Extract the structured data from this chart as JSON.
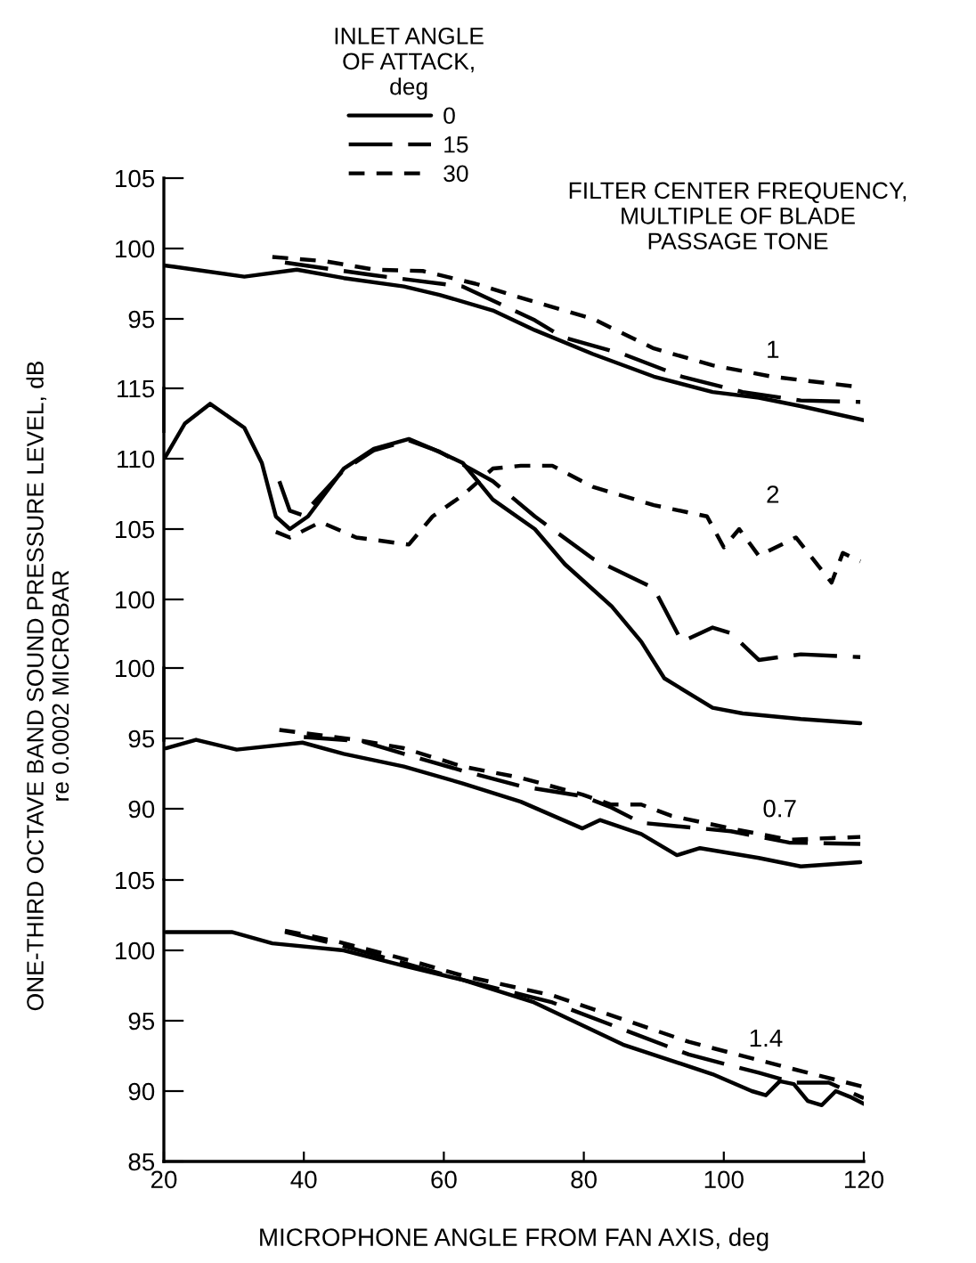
{
  "chart_data": [
    {
      "type": "line",
      "xlim": [
        20,
        120
      ],
      "ylim": [
        87,
        105
      ],
      "yticks": [
        95,
        100,
        105
      ],
      "tick_labels": "y",
      "legend": "top",
      "legend_title": "INLET ANGLE\nOF ATTACK,\ndeg",
      "annotations": [
        "FILTER CENTER FREQUENCY,\nMULTIPLE OF BLADE\nPASSAGE TONE",
        "1"
      ],
      "series": [
        {
          "name": "0",
          "color": "#000000",
          "line_style": "solid",
          "x": [
            20,
            21.5,
            31.5,
            39,
            45.7,
            54.3,
            59.4,
            67,
            73,
            81.3,
            90,
            98.4,
            105,
            111,
            120
          ],
          "values": [
            98.8,
            98.7,
            98.0,
            98.5,
            97.9,
            97.3,
            96.7,
            95.6,
            94.2,
            92.5,
            90.9,
            89.8,
            89.4,
            88.8,
            87.8
          ]
        },
        {
          "name": "15",
          "color": "#000000",
          "line_style": "dashed",
          "x": [
            37.3,
            50,
            62.7,
            73,
            77,
            85.6,
            94,
            102.7,
            111,
            119.5
          ],
          "values": [
            99.0,
            98.1,
            97.3,
            94.9,
            93.7,
            92.5,
            90.9,
            89.8,
            89.2,
            89.1
          ]
        },
        {
          "name": "30",
          "color": "#000000",
          "line_style": "dashed",
          "x": [
            35.5,
            43,
            50,
            57,
            64.5,
            73,
            81.3,
            90,
            98.4,
            106.8,
            118.7
          ],
          "values": [
            99.4,
            99.1,
            98.5,
            98.4,
            97.5,
            96.2,
            95.0,
            92.9,
            91.7,
            90.9,
            90.2
          ]
        }
      ]
    },
    {
      "type": "line",
      "xlim": [
        20,
        120
      ],
      "ylim": [
        90,
        115
      ],
      "yticks": [
        100,
        105,
        110,
        115
      ],
      "tick_labels": "y",
      "ylabel": "ONE-THIRD OCTAVE BAND SOUND PRESSURE LEVEL, dB\nre 0.0002 MICROBAR",
      "annotations": [
        "2"
      ],
      "series": [
        {
          "color": "#000000",
          "line_style": "solid",
          "x": [
            20.3,
            23,
            26.6,
            31.5,
            34,
            36,
            38,
            40.6,
            45.7,
            50,
            55,
            58.4,
            62.7,
            67,
            73,
            77.3,
            84,
            88.2,
            91.5,
            98.4,
            102.7,
            111,
            119.5
          ],
          "values": [
            110.2,
            112.5,
            113.9,
            112.2,
            109.7,
            105.9,
            105.0,
            105.9,
            109.3,
            110.7,
            111.4,
            110.7,
            109.7,
            107.1,
            105.0,
            102.5,
            99.5,
            97.0,
            94.4,
            92.3,
            91.9,
            91.5,
            91.2
          ]
        },
        {
          "color": "#000000",
          "line_style": "dashed",
          "x": [
            36.5,
            38,
            39.8,
            45.7,
            50,
            55,
            59.4,
            67,
            73,
            81.3,
            90,
            94,
            98.4,
            101,
            105,
            111,
            119.5
          ],
          "values": [
            108.4,
            106.3,
            106.0,
            109.2,
            110.6,
            111.3,
            110.5,
            108.4,
            105.9,
            102.9,
            100.8,
            97.0,
            98.0,
            97.6,
            95.7,
            96.1,
            95.9
          ]
        },
        {
          "color": "#000000",
          "line_style": "dashed",
          "x": [
            36,
            38,
            42.4,
            47.5,
            55,
            58.4,
            62.7,
            67,
            71,
            75.5,
            81.3,
            90,
            97.6,
            100,
            102.2,
            105,
            110.3,
            115.4,
            117,
            119.5
          ],
          "values": [
            104.8,
            104.4,
            105.5,
            104.4,
            103.9,
            105.9,
            107.4,
            109.3,
            109.5,
            109.5,
            108.0,
            106.7,
            105.9,
            103.7,
            105.0,
            103.1,
            104.4,
            101.2,
            103.3,
            102.7
          ]
        }
      ]
    },
    {
      "type": "line",
      "xlim": [
        20,
        120
      ],
      "ylim": [
        85,
        100
      ],
      "yticks": [
        90,
        95,
        100
      ],
      "tick_labels": "y",
      "annotations": [
        "0.7"
      ],
      "series": [
        {
          "color": "#000000",
          "line_style": "solid",
          "x": [
            20.3,
            24.6,
            30.4,
            39.8,
            45.7,
            54.3,
            62.7,
            71,
            79.8,
            82.3,
            88.2,
            93.3,
            96.6,
            105,
            111,
            119.5
          ],
          "values": [
            94.3,
            94.9,
            94.2,
            94.7,
            93.9,
            93.0,
            91.8,
            90.5,
            88.6,
            89.2,
            88.2,
            86.7,
            87.2,
            86.5,
            85.9,
            86.2
          ]
        },
        {
          "color": "#000000",
          "line_style": "dashed",
          "x": [
            40,
            48.2,
            54.3,
            62.7,
            71,
            79.8,
            83.9,
            88.2,
            92.5,
            101,
            109.3,
            119.5
          ],
          "values": [
            95.1,
            94.8,
            93.9,
            92.7,
            91.6,
            90.9,
            90.1,
            89.0,
            88.8,
            88.4,
            87.6,
            87.5
          ]
        },
        {
          "color": "#000000",
          "line_style": "dashed",
          "x": [
            36.5,
            47.5,
            54.3,
            62.7,
            71,
            79.8,
            83.9,
            88.2,
            92.5,
            101,
            109.3,
            119.5
          ],
          "values": [
            95.6,
            94.9,
            94.3,
            93.0,
            92.2,
            91.0,
            90.3,
            90.3,
            89.5,
            88.6,
            87.8,
            88.0
          ]
        }
      ]
    },
    {
      "type": "line",
      "xlim": [
        20,
        120
      ],
      "ylim": [
        85,
        105
      ],
      "xticks": [
        20,
        40,
        60,
        80,
        100,
        120
      ],
      "yticks": [
        85,
        90,
        95,
        100,
        105
      ],
      "xlabel": "MICROPHONE ANGLE FROM FAN AXIS, deg",
      "annotations": [
        "1.4"
      ],
      "series": [
        {
          "color": "#000000",
          "line_style": "solid",
          "x": [
            20.3,
            29.7,
            35.5,
            45.7,
            54.3,
            62.7,
            72.9,
            85.6,
            98.4,
            104,
            106,
            108,
            110,
            112,
            114,
            116,
            118,
            120
          ],
          "values": [
            101.3,
            101.3,
            100.5,
            100.0,
            98.9,
            97.9,
            96.3,
            93.3,
            91.2,
            90.0,
            89.7,
            90.7,
            90.5,
            89.3,
            89.0,
            90.0,
            89.6,
            89.1
          ]
        },
        {
          "color": "#000000",
          "line_style": "dashed",
          "x": [
            37.3,
            45,
            55,
            62.7,
            75.5,
            85,
            95,
            105,
            110,
            115,
            120
          ],
          "values": [
            101.3,
            100.4,
            99.0,
            97.9,
            96.3,
            94.5,
            92.6,
            91.3,
            90.6,
            90.6,
            89.5
          ]
        },
        {
          "color": "#000000",
          "line_style": "dashed",
          "x": [
            37.3,
            45,
            55,
            62.7,
            75.5,
            85,
            95,
            105,
            112,
            120
          ],
          "values": [
            101.4,
            100.6,
            99.3,
            98.2,
            96.8,
            95.2,
            93.5,
            92.2,
            91.3,
            90.3
          ]
        }
      ]
    }
  ]
}
